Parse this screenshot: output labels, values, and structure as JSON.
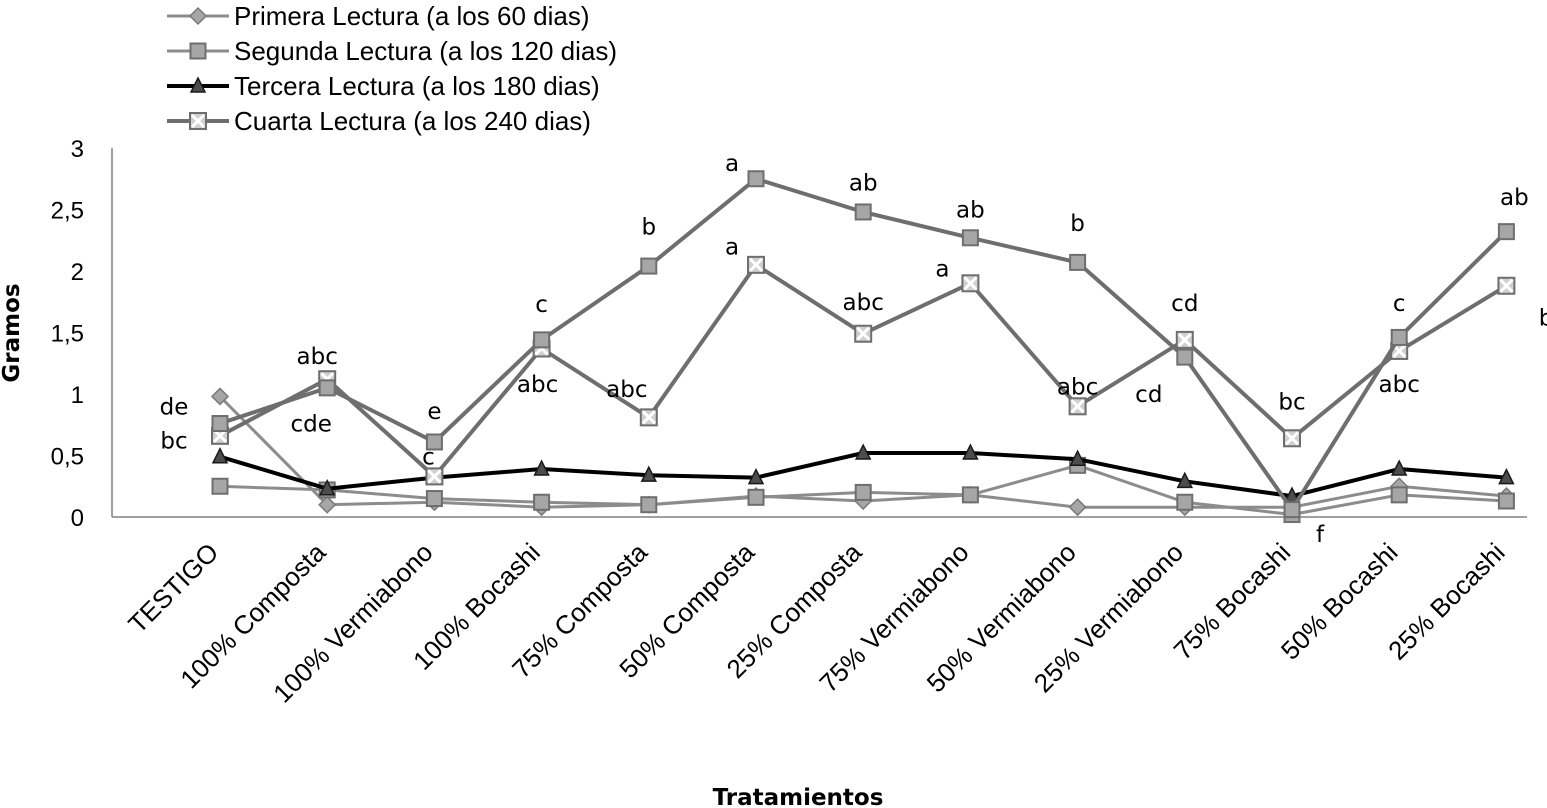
{
  "chart_data": {
    "type": "line",
    "title": "",
    "xlabel": "Tratamientos",
    "ylabel": "Gramos",
    "ylim": [
      0,
      3
    ],
    "yticks": [
      "0",
      "0,5",
      "1",
      "1,5",
      "2",
      "2,5",
      "3"
    ],
    "yticks_values": [
      0,
      0.5,
      1,
      1.5,
      2,
      2.5,
      3
    ],
    "grid": false,
    "legend_position": "top-left",
    "categories": [
      "TESTIGO",
      "100%  Composta",
      "100% Vermiabono",
      "100%  Bocashi",
      "75% Composta",
      "50% Composta",
      "25% Composta",
      "75% Vermiabono",
      "50% Vermiabono",
      "25% Vermiabono",
      "75% Bocashi",
      "50% Bocashi",
      "25% Bocashi"
    ],
    "series": [
      {
        "name": "Primera Lectura (a los 60 dias)",
        "marker": "diamond",
        "color": "#8c8c8c",
        "width": 3,
        "values": [
          0.98,
          0.1,
          0.12,
          0.08,
          0.1,
          0.17,
          0.13,
          0.18,
          0.08,
          0.08,
          0.08,
          0.25,
          0.17
        ]
      },
      {
        "name": "Segunda Lectura (a los 120 dias)",
        "marker": "square",
        "color": "#8c8c8c",
        "width": 3,
        "values": [
          0.25,
          0.22,
          0.15,
          0.12,
          0.1,
          0.16,
          0.2,
          0.18,
          0.42,
          0.12,
          0.02,
          0.18,
          0.13
        ]
      },
      {
        "name": "Tercera Lectura (a los 180 dias)",
        "marker": "triangle",
        "color": "#000000",
        "width": 4,
        "values": [
          0.49,
          0.23,
          0.32,
          0.39,
          0.34,
          0.32,
          0.52,
          0.52,
          0.47,
          0.29,
          0.17,
          0.39,
          0.32
        ]
      },
      {
        "name": "Cuarta Lectura (a los 240 dias)",
        "marker": "xbox",
        "color": "#6e6e6e",
        "width": 4,
        "values": [
          0.66,
          1.12,
          0.33,
          1.37,
          0.81,
          2.05,
          1.49,
          1.9,
          0.9,
          1.44,
          0.64,
          1.35,
          1.88
        ]
      },
      {
        "name": "",
        "marker": "square",
        "color": "#6e6e6e",
        "width": 4,
        "legend": false,
        "values": [
          0.76,
          1.05,
          0.61,
          1.44,
          2.04,
          2.75,
          2.48,
          2.27,
          2.07,
          1.3,
          0.06,
          1.46,
          2.32
        ]
      }
    ],
    "annotations": [
      {
        "text": "de",
        "cat": 0,
        "y": 0.9,
        "dx": -46
      },
      {
        "text": "bc",
        "cat": 0,
        "y": 0.62,
        "dx": -46
      },
      {
        "text": "abc",
        "cat": 1,
        "y": 1.31,
        "dx": -10
      },
      {
        "text": "cde",
        "cat": 1,
        "y": 0.76,
        "dx": -16
      },
      {
        "text": "e",
        "cat": 2,
        "y": 0.86,
        "dx": 0
      },
      {
        "text": "c",
        "cat": 2,
        "y": 0.49,
        "dx": -6
      },
      {
        "text": "c",
        "cat": 3,
        "y": 1.73,
        "dx": 0
      },
      {
        "text": "abc",
        "cat": 3,
        "y": 1.08,
        "dx": -4
      },
      {
        "text": "b",
        "cat": 4,
        "y": 2.36,
        "dx": 0
      },
      {
        "text": "abc",
        "cat": 4,
        "y": 1.04,
        "dx": -22
      },
      {
        "text": "a",
        "cat": 5,
        "y": 2.88,
        "dx": -24
      },
      {
        "text": "a",
        "cat": 5,
        "y": 2.2,
        "dx": -24
      },
      {
        "text": "ab",
        "cat": 6,
        "y": 2.72,
        "dx": 0
      },
      {
        "text": "abc",
        "cat": 6,
        "y": 1.75,
        "dx": 0
      },
      {
        "text": "ab",
        "cat": 7,
        "y": 2.5,
        "dx": 0
      },
      {
        "text": "a",
        "cat": 7,
        "y": 2.02,
        "dx": -28
      },
      {
        "text": "b",
        "cat": 8,
        "y": 2.39,
        "dx": 0
      },
      {
        "text": "abc",
        "cat": 8,
        "y": 1.06,
        "dx": 0
      },
      {
        "text": "cd",
        "cat": 9,
        "y": 1.74,
        "dx": 0
      },
      {
        "text": "cd",
        "cat": 9,
        "y": 1.0,
        "dx": -36
      },
      {
        "text": "bc",
        "cat": 10,
        "y": 0.94,
        "dx": 0
      },
      {
        "text": "f",
        "cat": 10,
        "y": -0.14,
        "dx": 28
      },
      {
        "text": "c",
        "cat": 11,
        "y": 1.74,
        "dx": 0
      },
      {
        "text": "abc",
        "cat": 11,
        "y": 1.08,
        "dx": 0
      },
      {
        "text": "ab",
        "cat": 12,
        "y": 2.6,
        "dx": 8
      },
      {
        "text": "bc",
        "cat": 12,
        "y": 1.62,
        "dx": 46
      }
    ]
  }
}
